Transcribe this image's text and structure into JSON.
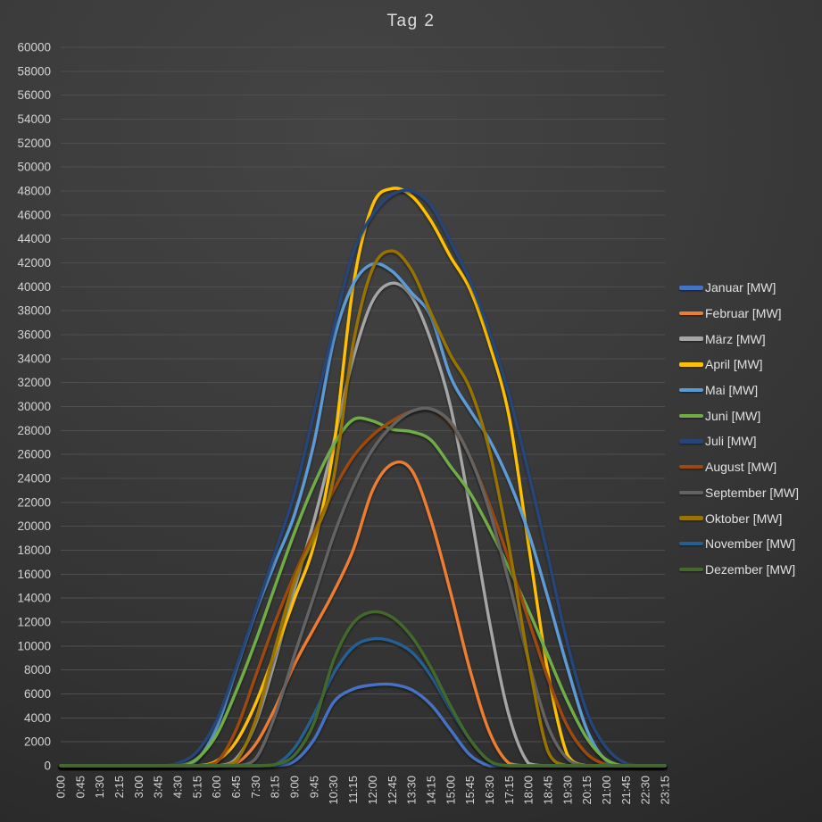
{
  "chart_data": {
    "type": "line",
    "title": "Tag 2",
    "unit": "MW",
    "legend_position": "right",
    "grid": true,
    "y_axis": {
      "min": 0,
      "max": 60000,
      "step": 2000
    },
    "x_axis": {
      "tick_interval_minutes": 45
    },
    "categories": [
      "0:00",
      "0:45",
      "1:30",
      "2:15",
      "3:00",
      "3:45",
      "4:30",
      "5:15",
      "6:00",
      "6:45",
      "7:30",
      "8:15",
      "9:00",
      "9:45",
      "10:30",
      "11:15",
      "12:00",
      "12:45",
      "13:30",
      "14:15",
      "15:00",
      "15:45",
      "16:30",
      "17:15",
      "18:00",
      "18:45",
      "19:30",
      "20:15",
      "21:00",
      "21:45",
      "22:30",
      "23:15"
    ],
    "series": [
      {
        "key": "januar",
        "label": "Januar [MW]",
        "color": "#4472C4",
        "values": [
          0,
          0,
          0,
          0,
          0,
          0,
          0,
          0,
          0,
          0,
          0,
          0,
          400,
          2200,
          5300,
          6400,
          6750,
          6800,
          6350,
          5100,
          3000,
          900,
          0,
          0,
          0,
          0,
          0,
          0,
          0,
          0,
          0,
          0
        ]
      },
      {
        "key": "februar",
        "label": "Februar [MW]",
        "color": "#ED7D31",
        "values": [
          0,
          0,
          0,
          0,
          0,
          0,
          0,
          0,
          0,
          200,
          1800,
          4800,
          8500,
          11500,
          14500,
          18000,
          23000,
          25200,
          24700,
          20500,
          14500,
          8000,
          2800,
          200,
          0,
          0,
          0,
          0,
          0,
          0,
          0,
          0
        ]
      },
      {
        "key": "maerz",
        "label": "März [MW]",
        "color": "#A5A5A5",
        "values": [
          0,
          0,
          0,
          0,
          0,
          0,
          0,
          0,
          0,
          600,
          3500,
          8800,
          14800,
          20500,
          27000,
          34000,
          38800,
          40300,
          39200,
          35500,
          30000,
          21500,
          12000,
          4200,
          200,
          0,
          0,
          0,
          0,
          0,
          0,
          0
        ]
      },
      {
        "key": "april",
        "label": "April [MW]",
        "color": "#FFC000",
        "values": [
          0,
          0,
          0,
          0,
          0,
          0,
          0,
          0,
          400,
          2000,
          5200,
          9500,
          14000,
          18500,
          26500,
          40000,
          46800,
          48200,
          47600,
          45500,
          42500,
          39800,
          35200,
          29200,
          18500,
          7800,
          900,
          0,
          0,
          0,
          0,
          0
        ]
      },
      {
        "key": "mai",
        "label": "Mai [MW]",
        "color": "#5B9BD5",
        "values": [
          0,
          0,
          0,
          0,
          0,
          0,
          0,
          500,
          3200,
          8000,
          12800,
          17000,
          21000,
          27000,
          35500,
          40200,
          41900,
          41300,
          39500,
          37500,
          32500,
          29700,
          27200,
          23800,
          19500,
          14000,
          8200,
          3000,
          400,
          0,
          0,
          0
        ]
      },
      {
        "key": "juni",
        "label": "Juni [MW]",
        "color": "#70AD47",
        "values": [
          0,
          0,
          0,
          0,
          0,
          0,
          0,
          600,
          2600,
          6200,
          10400,
          15000,
          19500,
          23500,
          26800,
          28900,
          28800,
          28100,
          27900,
          27200,
          25000,
          22800,
          19800,
          16500,
          13000,
          9200,
          5400,
          2300,
          500,
          0,
          0,
          0
        ]
      },
      {
        "key": "juli",
        "label": "Juli [MW]",
        "color": "#264478",
        "values": [
          0,
          0,
          0,
          0,
          0,
          0,
          200,
          1200,
          3800,
          8200,
          13000,
          17800,
          22800,
          29500,
          36500,
          42800,
          46000,
          47700,
          48000,
          46800,
          43800,
          40500,
          36200,
          31000,
          24500,
          17500,
          10200,
          4500,
          1500,
          200,
          0,
          0
        ]
      },
      {
        "key": "august",
        "label": "August [MW]",
        "color": "#9E480E",
        "values": [
          0,
          0,
          0,
          0,
          0,
          0,
          0,
          0,
          300,
          3000,
          7500,
          12000,
          16000,
          19500,
          23000,
          25800,
          27600,
          28800,
          29600,
          29800,
          28600,
          25800,
          21800,
          17200,
          12200,
          7300,
          3300,
          1000,
          100,
          0,
          0,
          0
        ]
      },
      {
        "key": "september",
        "label": "September [MW]",
        "color": "#636363",
        "values": [
          0,
          0,
          0,
          0,
          0,
          0,
          0,
          0,
          0,
          0,
          600,
          4200,
          9300,
          14200,
          19200,
          23300,
          26400,
          28400,
          29600,
          29800,
          28700,
          25800,
          21300,
          15300,
          8800,
          3300,
          600,
          0,
          0,
          0,
          0,
          0
        ]
      },
      {
        "key": "oktober",
        "label": "Oktober [MW]",
        "color": "#997300",
        "values": [
          0,
          0,
          0,
          0,
          0,
          0,
          0,
          0,
          0,
          400,
          3800,
          9800,
          15500,
          19200,
          24000,
          35200,
          41500,
          43000,
          41400,
          37800,
          34300,
          31500,
          26300,
          18300,
          8800,
          1200,
          0,
          0,
          0,
          0,
          0,
          0
        ]
      },
      {
        "key": "november",
        "label": "November [MW]",
        "color": "#255E91",
        "values": [
          0,
          0,
          0,
          0,
          0,
          0,
          0,
          0,
          0,
          0,
          0,
          100,
          1500,
          4300,
          7700,
          9900,
          10600,
          10400,
          9500,
          7500,
          4700,
          2200,
          400,
          0,
          0,
          0,
          0,
          0,
          0,
          0,
          0,
          0
        ]
      },
      {
        "key": "dezember",
        "label": "Dezember [MW]",
        "color": "#43682B",
        "values": [
          0,
          0,
          0,
          0,
          0,
          0,
          0,
          0,
          0,
          0,
          0,
          100,
          900,
          3600,
          8800,
          11900,
          12850,
          12400,
          10800,
          8200,
          5000,
          2200,
          400,
          0,
          0,
          0,
          0,
          0,
          0,
          0,
          0,
          0
        ]
      }
    ]
  }
}
